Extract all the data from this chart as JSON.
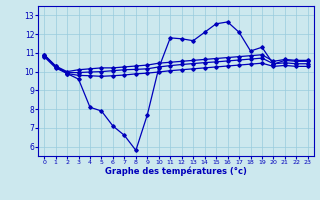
{
  "xlabel": "Graphe des températures (°c)",
  "ylabel": "",
  "xlim": [
    -0.5,
    23.5
  ],
  "ylim": [
    5.5,
    13.5
  ],
  "yticks": [
    6,
    7,
    8,
    9,
    10,
    11,
    12,
    13
  ],
  "xticks": [
    0,
    1,
    2,
    3,
    4,
    5,
    6,
    7,
    8,
    9,
    10,
    11,
    12,
    13,
    14,
    15,
    16,
    17,
    18,
    19,
    20,
    21,
    22,
    23
  ],
  "bg_color": "#cce8ee",
  "line_color": "#0000bb",
  "grid_color": "#99ccdd",
  "line1_x": [
    0,
    1,
    2,
    3,
    4,
    5,
    6,
    7,
    8,
    9,
    10,
    11,
    12,
    13,
    14,
    15,
    16,
    17,
    18,
    19,
    20,
    21,
    22,
    23
  ],
  "line1_y": [
    10.9,
    10.3,
    9.9,
    9.6,
    8.1,
    7.9,
    7.1,
    6.6,
    5.8,
    7.7,
    10.2,
    11.8,
    11.75,
    11.65,
    12.1,
    12.55,
    12.65,
    12.1,
    11.1,
    11.3,
    10.4,
    10.6,
    10.55,
    10.55
  ],
  "line2_x": [
    0,
    1,
    2,
    3,
    4,
    5,
    6,
    7,
    8,
    9,
    10,
    11,
    12,
    13,
    14,
    15,
    16,
    17,
    18,
    19,
    20,
    21,
    22,
    23
  ],
  "line2_y": [
    10.9,
    10.3,
    10.0,
    10.1,
    10.15,
    10.2,
    10.2,
    10.25,
    10.3,
    10.35,
    10.45,
    10.5,
    10.55,
    10.6,
    10.65,
    10.7,
    10.75,
    10.8,
    10.85,
    10.9,
    10.55,
    10.65,
    10.6,
    10.6
  ],
  "line3_x": [
    0,
    1,
    2,
    3,
    4,
    5,
    6,
    7,
    8,
    9,
    10,
    11,
    12,
    13,
    14,
    15,
    16,
    17,
    18,
    19,
    20,
    21,
    22,
    23
  ],
  "line3_y": [
    10.85,
    10.25,
    9.95,
    9.95,
    9.98,
    10.0,
    10.05,
    10.1,
    10.12,
    10.15,
    10.25,
    10.32,
    10.38,
    10.43,
    10.48,
    10.52,
    10.57,
    10.62,
    10.67,
    10.72,
    10.42,
    10.47,
    10.42,
    10.42
  ],
  "line4_x": [
    0,
    1,
    2,
    3,
    4,
    5,
    6,
    7,
    8,
    9,
    10,
    11,
    12,
    13,
    14,
    15,
    16,
    17,
    18,
    19,
    20,
    21,
    22,
    23
  ],
  "line4_y": [
    10.8,
    10.2,
    9.9,
    9.8,
    9.78,
    9.75,
    9.78,
    9.82,
    9.88,
    9.92,
    9.98,
    10.05,
    10.1,
    10.15,
    10.2,
    10.25,
    10.3,
    10.35,
    10.4,
    10.45,
    10.28,
    10.33,
    10.28,
    10.28
  ]
}
